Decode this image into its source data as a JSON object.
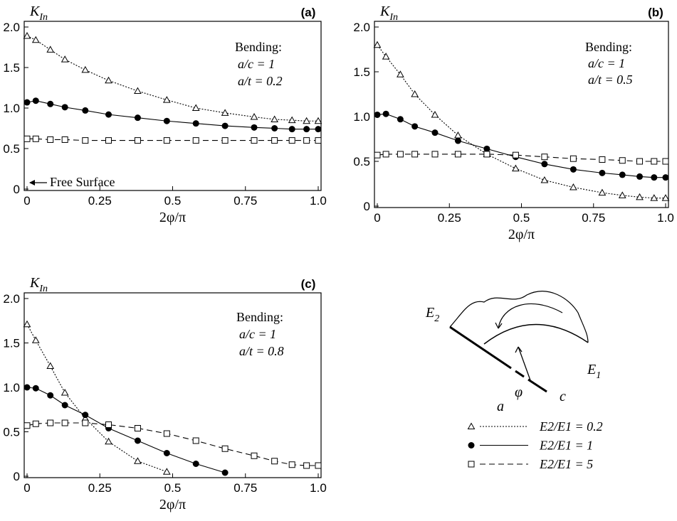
{
  "chart_data": [
    {
      "type": "line",
      "title": "(a)",
      "y_label": [
        "K",
        "In"
      ],
      "x_label": "2φ/π",
      "annotations": [
        "Bending:",
        "a/c = 1",
        "a/t = 0.2"
      ],
      "note": "Free Surface",
      "xlim": [
        0,
        1
      ],
      "ylim": [
        0,
        2
      ],
      "xticks": [
        0,
        0.25,
        0.5,
        0.75,
        {
          "value": 1,
          "label": "1.0"
        }
      ],
      "yticks": [
        0,
        0.5,
        {
          "value": 1,
          "label": "1.0"
        },
        1.5,
        {
          "value": 2,
          "label": "2.0"
        }
      ],
      "x": [
        0,
        0.03,
        0.08,
        0.13,
        0.2,
        0.28,
        0.38,
        0.48,
        0.58,
        0.68,
        0.78,
        0.85,
        0.91,
        0.96,
        1.0
      ],
      "series": [
        {
          "name": "E2/E1 = 0.2",
          "color": "#000000",
          "marker": "triangle",
          "line_style": "dotted",
          "values": [
            1.89,
            1.84,
            1.72,
            1.6,
            1.47,
            1.34,
            1.21,
            1.1,
            1.0,
            0.94,
            0.89,
            0.86,
            0.85,
            0.84,
            0.84
          ]
        },
        {
          "name": "E2/E1 = 1",
          "color": "#000000",
          "marker": "circle",
          "line_style": "solid",
          "values": [
            1.07,
            1.09,
            1.05,
            1.01,
            0.97,
            0.92,
            0.88,
            0.84,
            0.81,
            0.78,
            0.76,
            0.75,
            0.74,
            0.74,
            0.74
          ]
        },
        {
          "name": "E2/E1 = 5",
          "color": "#000000",
          "marker": "square",
          "line_style": "dashed",
          "values": [
            0.62,
            0.62,
            0.61,
            0.61,
            0.6,
            0.6,
            0.6,
            0.6,
            0.6,
            0.6,
            0.6,
            0.6,
            0.6,
            0.6,
            0.6
          ]
        }
      ]
    },
    {
      "type": "line",
      "title": "(b)",
      "y_label": [
        "K",
        "In"
      ],
      "x_label": "2φ/π",
      "annotations": [
        "Bending:",
        "a/c = 1",
        "a/t = 0.5"
      ],
      "xlim": [
        0,
        1
      ],
      "ylim": [
        0,
        2
      ],
      "xticks": [
        0,
        0.25,
        0.5,
        0.75,
        {
          "value": 1,
          "label": "1.0"
        }
      ],
      "yticks": [
        0,
        0.5,
        {
          "value": 1,
          "label": "1.0"
        },
        1.5,
        {
          "value": 2,
          "label": "2.0"
        }
      ],
      "x": [
        0,
        0.03,
        0.08,
        0.13,
        0.2,
        0.28,
        0.38,
        0.48,
        0.58,
        0.68,
        0.78,
        0.85,
        0.91,
        0.96,
        1.0
      ],
      "series": [
        {
          "color": "#000000",
          "marker": "triangle",
          "line_style": "dotted",
          "values": [
            1.8,
            1.67,
            1.47,
            1.25,
            1.02,
            0.79,
            0.58,
            0.42,
            0.29,
            0.21,
            0.15,
            0.12,
            0.1,
            0.09,
            0.09
          ]
        },
        {
          "color": "#000000",
          "marker": "circle",
          "line_style": "solid",
          "values": [
            1.02,
            1.03,
            0.97,
            0.89,
            0.82,
            0.73,
            0.64,
            0.55,
            0.47,
            0.41,
            0.37,
            0.35,
            0.33,
            0.32,
            0.32
          ]
        },
        {
          "color": "#000000",
          "marker": "square",
          "line_style": "dashed",
          "values": [
            0.57,
            0.58,
            0.58,
            0.58,
            0.58,
            0.58,
            0.58,
            0.57,
            0.55,
            0.53,
            0.52,
            0.51,
            0.5,
            0.5,
            0.5
          ]
        }
      ]
    },
    {
      "type": "line",
      "title": "(c)",
      "y_label": [
        "K",
        "In"
      ],
      "x_label": "2φ/π",
      "annotations": [
        "Bending:",
        "a/c = 1",
        "a/t = 0.8"
      ],
      "xlim": [
        0,
        1
      ],
      "ylim": [
        0,
        2
      ],
      "xticks": [
        0,
        0.25,
        0.5,
        0.75,
        {
          "value": 1,
          "label": "1.0"
        }
      ],
      "yticks": [
        0,
        0.5,
        {
          "value": 1,
          "label": "1.0"
        },
        1.5,
        {
          "value": 2,
          "label": "2.0"
        }
      ],
      "x": [
        0,
        0.03,
        0.08,
        0.13,
        0.2,
        0.28,
        0.38,
        0.48,
        0.58,
        0.68,
        0.78,
        0.85,
        0.91,
        0.96,
        1.0
      ],
      "series": [
        {
          "color": "#000000",
          "marker": "triangle",
          "line_style": "dotted",
          "values": [
            1.71,
            1.53,
            1.24,
            0.94,
            0.65,
            0.39,
            0.17,
            0.05,
            null,
            null,
            null,
            null,
            null,
            null,
            null
          ]
        },
        {
          "color": "#000000",
          "marker": "circle",
          "line_style": "solid",
          "values": [
            1.0,
            0.99,
            0.91,
            0.8,
            0.69,
            0.54,
            0.4,
            0.26,
            0.14,
            0.04,
            null,
            null,
            null,
            null,
            null
          ]
        },
        {
          "color": "#000000",
          "marker": "square",
          "line_style": "dashed",
          "values": [
            0.57,
            0.59,
            0.6,
            0.6,
            0.6,
            0.58,
            0.54,
            0.48,
            0.4,
            0.31,
            0.23,
            0.17,
            0.13,
            0.12,
            0.12
          ]
        }
      ]
    }
  ],
  "diagram": {
    "labels": {
      "e2": [
        "E",
        "2"
      ],
      "e1": [
        "E",
        "1"
      ],
      "a": "a",
      "c": "c",
      "phi": "φ"
    }
  }
}
